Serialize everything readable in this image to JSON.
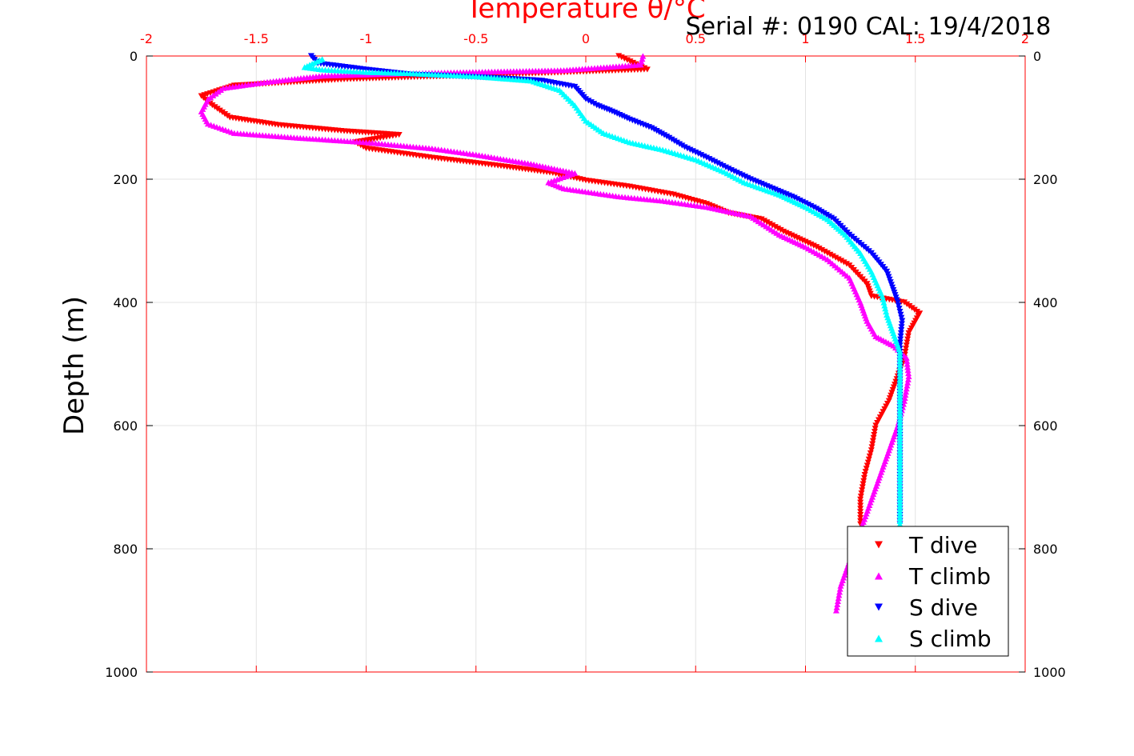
{
  "figure": {
    "serial_text": "Serial #: 0190  CAL: 19/4/2018"
  },
  "chart_data": {
    "type": "scatter",
    "title": "",
    "xlabel": "Temperature θ/°C",
    "ylabel": "Depth (m)",
    "xlim": [
      -2,
      2
    ],
    "ylim": [
      0,
      1000
    ],
    "y_reversed": true,
    "grid": true,
    "legend_position": "bottom-right",
    "x_ticks": [
      "-2",
      "-1.5",
      "-1",
      "-0.5",
      "0",
      "0.5",
      "1",
      "1.5",
      "2"
    ],
    "y_ticks": [
      "0",
      "200",
      "400",
      "600",
      "800",
      "1000"
    ],
    "axis_color": "#ff0000",
    "series": [
      {
        "name": "T dive",
        "color": "#ff0000",
        "marker": "triangle-down",
        "points": [
          [
            0.15,
            0
          ],
          [
            0.28,
            22
          ],
          [
            -0.2,
            28
          ],
          [
            -1.1,
            38
          ],
          [
            -1.6,
            48
          ],
          [
            -1.75,
            65
          ],
          [
            -1.7,
            80
          ],
          [
            -1.62,
            100
          ],
          [
            -1.4,
            112
          ],
          [
            -1.1,
            122
          ],
          [
            -0.85,
            128
          ],
          [
            -1.05,
            140
          ],
          [
            -1.0,
            150
          ],
          [
            -0.7,
            165
          ],
          [
            -0.4,
            178
          ],
          [
            -0.15,
            190
          ],
          [
            0.0,
            202
          ],
          [
            0.2,
            212
          ],
          [
            0.4,
            225
          ],
          [
            0.55,
            240
          ],
          [
            0.65,
            255
          ],
          [
            0.8,
            265
          ],
          [
            0.9,
            285
          ],
          [
            1.05,
            310
          ],
          [
            1.2,
            340
          ],
          [
            1.28,
            370
          ],
          [
            1.3,
            390
          ],
          [
            1.45,
            400
          ],
          [
            1.52,
            418
          ],
          [
            1.47,
            450
          ],
          [
            1.45,
            490
          ],
          [
            1.42,
            520
          ],
          [
            1.38,
            560
          ],
          [
            1.32,
            600
          ],
          [
            1.3,
            640
          ],
          [
            1.27,
            680
          ],
          [
            1.25,
            720
          ],
          [
            1.25,
            760
          ]
        ]
      },
      {
        "name": "T climb",
        "color": "#ff00ff",
        "marker": "triangle-up",
        "points": [
          [
            1.14,
            900
          ],
          [
            1.16,
            860
          ],
          [
            1.2,
            820
          ],
          [
            1.25,
            770
          ],
          [
            1.3,
            720
          ],
          [
            1.34,
            680
          ],
          [
            1.38,
            640
          ],
          [
            1.42,
            600
          ],
          [
            1.45,
            560
          ],
          [
            1.47,
            520
          ],
          [
            1.46,
            490
          ],
          [
            1.4,
            470
          ],
          [
            1.32,
            455
          ],
          [
            1.28,
            430
          ],
          [
            1.25,
            400
          ],
          [
            1.2,
            360
          ],
          [
            1.1,
            330
          ],
          [
            1.0,
            310
          ],
          [
            0.88,
            290
          ],
          [
            0.75,
            260
          ],
          [
            0.55,
            245
          ],
          [
            0.35,
            235
          ],
          [
            0.15,
            228
          ],
          [
            -0.1,
            215
          ],
          [
            -0.17,
            205
          ],
          [
            -0.05,
            190
          ],
          [
            -0.25,
            175
          ],
          [
            -0.5,
            160
          ],
          [
            -0.7,
            150
          ],
          [
            -1.0,
            140
          ],
          [
            -1.3,
            133
          ],
          [
            -1.6,
            125
          ],
          [
            -1.72,
            110
          ],
          [
            -1.75,
            90
          ],
          [
            -1.72,
            70
          ],
          [
            -1.65,
            52
          ],
          [
            -1.45,
            42
          ],
          [
            -1.2,
            32
          ],
          [
            -0.8,
            28
          ],
          [
            -0.4,
            25
          ],
          [
            -0.1,
            23
          ],
          [
            0.25,
            14
          ],
          [
            0.26,
            0
          ]
        ]
      },
      {
        "name": "S dive",
        "color": "#0000ff",
        "marker": "triangle-down",
        "points": [
          [
            -1.25,
            0
          ],
          [
            -1.22,
            12
          ],
          [
            -1.0,
            22
          ],
          [
            -0.8,
            30
          ],
          [
            -0.45,
            35
          ],
          [
            -0.2,
            40
          ],
          [
            -0.05,
            50
          ],
          [
            0.0,
            70
          ],
          [
            0.05,
            80
          ],
          [
            0.12,
            90
          ],
          [
            0.2,
            103
          ],
          [
            0.3,
            117
          ],
          [
            0.38,
            133
          ],
          [
            0.45,
            148
          ],
          [
            0.55,
            165
          ],
          [
            0.65,
            183
          ],
          [
            0.75,
            200
          ],
          [
            0.85,
            215
          ],
          [
            0.95,
            230
          ],
          [
            1.05,
            248
          ],
          [
            1.13,
            265
          ],
          [
            1.2,
            290
          ],
          [
            1.3,
            320
          ],
          [
            1.37,
            350
          ],
          [
            1.4,
            380
          ],
          [
            1.42,
            400
          ],
          [
            1.44,
            430
          ],
          [
            1.43,
            470
          ],
          [
            1.43,
            520
          ],
          [
            1.43,
            600
          ],
          [
            1.43,
            680
          ],
          [
            1.43,
            760
          ]
        ]
      },
      {
        "name": "S climb",
        "color": "#00ffff",
        "marker": "triangle-up",
        "points": [
          [
            1.43,
            770
          ],
          [
            1.43,
            700
          ],
          [
            1.43,
            620
          ],
          [
            1.43,
            540
          ],
          [
            1.43,
            480
          ],
          [
            1.4,
            450
          ],
          [
            1.37,
            420
          ],
          [
            1.35,
            390
          ],
          [
            1.3,
            350
          ],
          [
            1.25,
            320
          ],
          [
            1.18,
            290
          ],
          [
            1.1,
            265
          ],
          [
            1.0,
            245
          ],
          [
            0.88,
            225
          ],
          [
            0.72,
            205
          ],
          [
            0.63,
            188
          ],
          [
            0.5,
            168
          ],
          [
            0.35,
            152
          ],
          [
            0.2,
            140
          ],
          [
            0.08,
            125
          ],
          [
            0.0,
            105
          ],
          [
            -0.05,
            80
          ],
          [
            -0.12,
            55
          ],
          [
            -0.25,
            40
          ],
          [
            -0.5,
            33
          ],
          [
            -0.8,
            28
          ],
          [
            -1.0,
            26
          ],
          [
            -1.2,
            22
          ],
          [
            -1.28,
            18
          ],
          [
            -1.2,
            5
          ]
        ]
      }
    ]
  }
}
